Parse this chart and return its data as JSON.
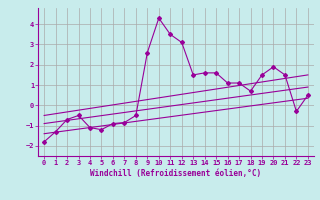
{
  "xlabel": "Windchill (Refroidissement éolien,°C)",
  "background_color": "#c8ecec",
  "grid_color": "#aaaaaa",
  "line_color": "#990099",
  "xlim": [
    -0.5,
    23.5
  ],
  "ylim": [
    -2.5,
    4.8
  ],
  "xticks": [
    0,
    1,
    2,
    3,
    4,
    5,
    6,
    7,
    8,
    9,
    10,
    11,
    12,
    13,
    14,
    15,
    16,
    17,
    18,
    19,
    20,
    21,
    22,
    23
  ],
  "yticks": [
    -2,
    -1,
    0,
    1,
    2,
    3,
    4
  ],
  "series1_x": [
    0,
    1,
    2,
    3,
    4,
    5,
    6,
    7,
    8,
    9,
    10,
    11,
    12,
    13,
    14,
    15,
    16,
    17,
    18,
    19,
    20,
    21,
    22,
    23
  ],
  "series1_y": [
    -1.8,
    -1.3,
    -0.7,
    -0.5,
    -1.1,
    -1.2,
    -0.9,
    -0.85,
    -0.5,
    2.6,
    4.3,
    3.5,
    3.1,
    1.5,
    1.6,
    1.6,
    1.1,
    1.1,
    0.7,
    1.5,
    1.9,
    1.5,
    -0.3,
    0.5
  ],
  "series2_x": [
    0,
    23
  ],
  "series2_y": [
    -0.9,
    0.9
  ],
  "series3_x": [
    0,
    23
  ],
  "series3_y": [
    -1.4,
    0.35
  ],
  "series4_x": [
    0,
    23
  ],
  "series4_y": [
    -0.5,
    1.5
  ],
  "tick_fontsize": 5.0,
  "xlabel_fontsize": 5.5
}
